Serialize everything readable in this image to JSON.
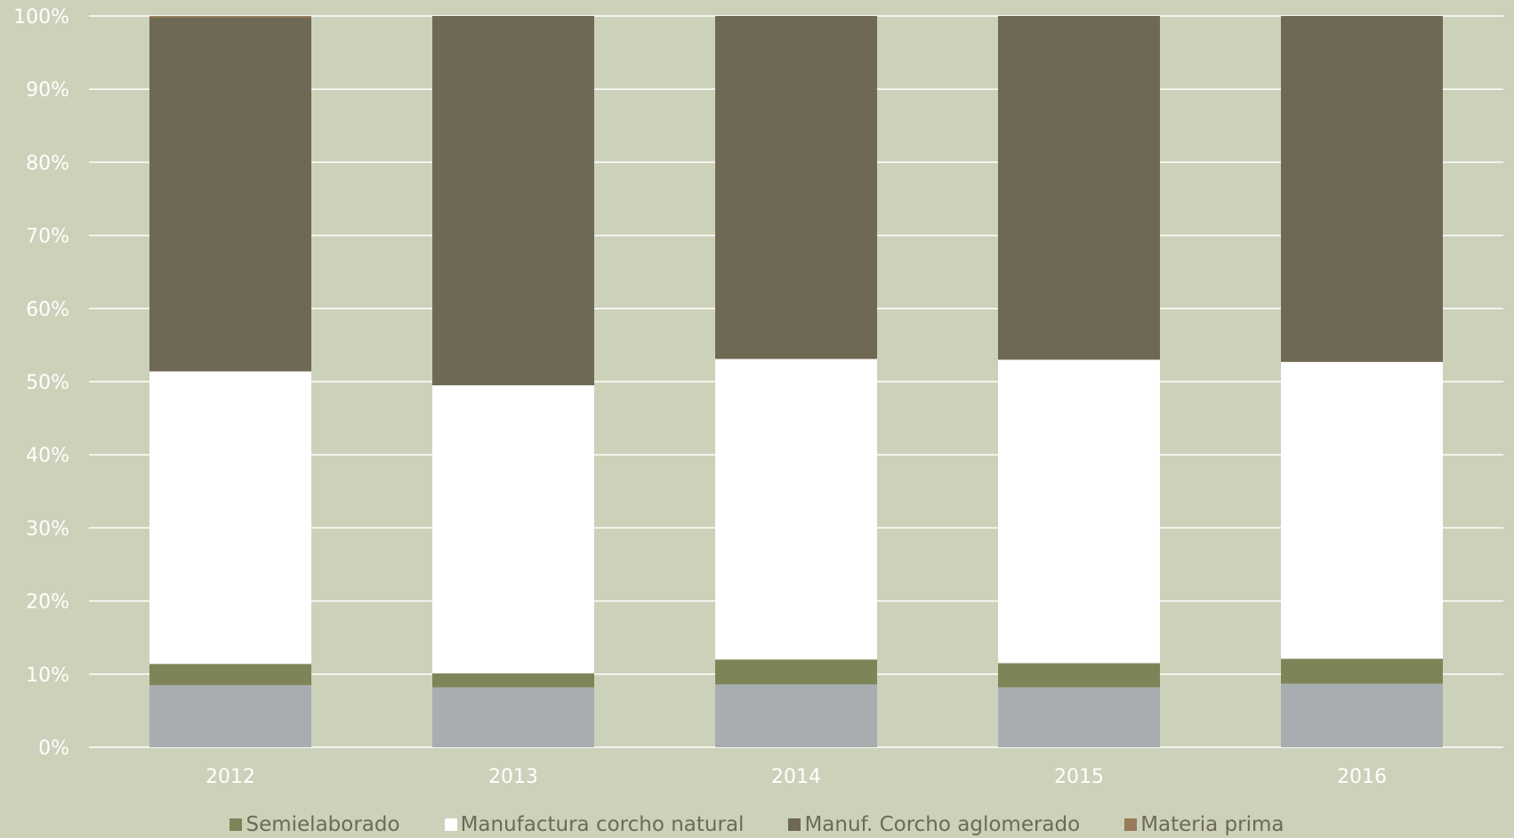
{
  "chart_data": {
    "type": "bar",
    "stacked": true,
    "percent": true,
    "title": "",
    "xlabel": "",
    "ylabel": "",
    "ylim": [
      0,
      100
    ],
    "yticks": [
      "0%",
      "10%",
      "20%",
      "30%",
      "40%",
      "50%",
      "60%",
      "70%",
      "80%",
      "90%",
      "100%"
    ],
    "categories": [
      "2012",
      "2013",
      "2014",
      "2015",
      "2016"
    ],
    "grid": true,
    "legend_position": "bottom",
    "series": [
      {
        "values": [
          8.5,
          8.2,
          8.6,
          8.2,
          8.7
        ],
        "color": "#a8adaf"
      },
      {
        "name": "Semielaborado",
        "values": [
          2.9,
          1.9,
          3.4,
          3.3,
          3.4
        ],
        "color": "#7d8558"
      },
      {
        "name": "Manufactura corcho natural",
        "values": [
          40.0,
          39.4,
          41.1,
          41.5,
          40.6
        ],
        "color": "#ffffff"
      },
      {
        "name": "Manuf. Corcho aglomerado",
        "values": [
          48.4,
          50.5,
          46.9,
          47.0,
          47.3
        ],
        "color": "#6e6854"
      },
      {
        "name": "Materia prima",
        "values": [
          0.2,
          0.0,
          0.0,
          0.0,
          0.0
        ],
        "color": "#9a7a5a"
      }
    ]
  }
}
